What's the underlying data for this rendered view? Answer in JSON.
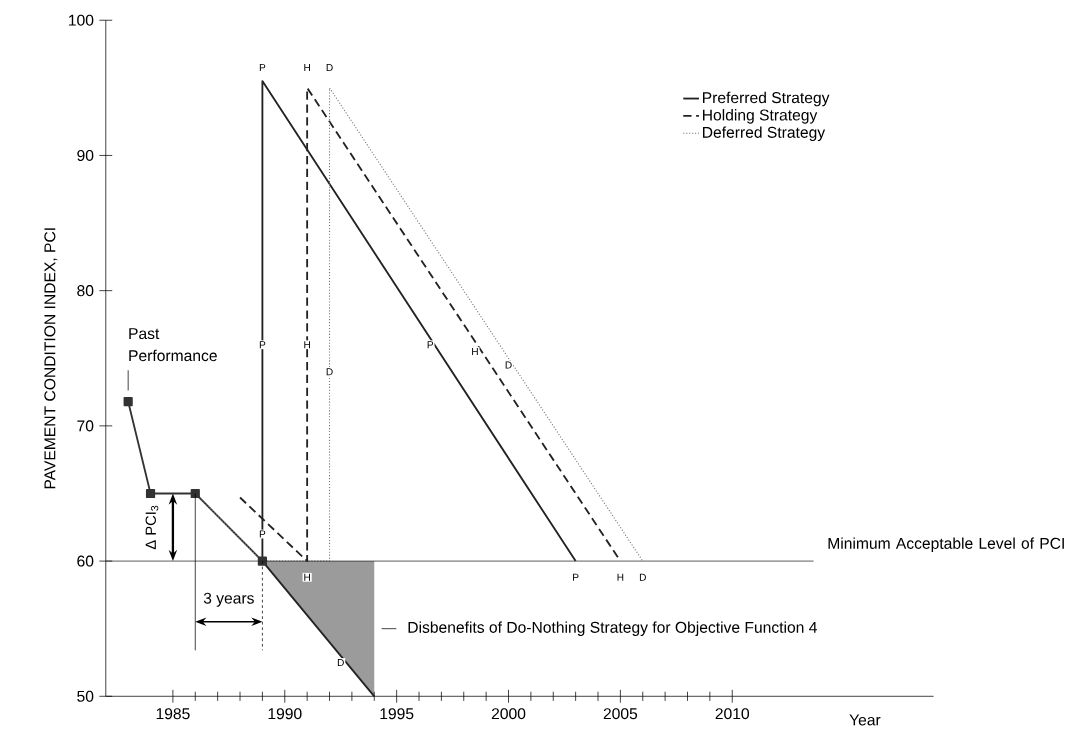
{
  "chart_data": {
    "type": "line",
    "xlabel": "Year",
    "ylabel": "PAVEMENT CONDITION INDEX, PCI",
    "xlim": [
      1982,
      2019
    ],
    "ylim": [
      50,
      100
    ],
    "xticks": [
      1985,
      1990,
      1995,
      2000,
      2005,
      2010
    ],
    "yticks": [
      50,
      60,
      70,
      80,
      90,
      100
    ],
    "legend": "top right",
    "grid": false,
    "series": [
      {
        "x": [
          1983,
          1984,
          1986,
          1989
        ],
        "values": [
          71.8,
          65,
          65,
          60
        ],
        "color": "#333333",
        "marker": "square",
        "line_style": "solid"
      },
      {
        "x": [
          1989,
          1994
        ],
        "values": [
          60,
          50
        ],
        "lower": [
          60,
          50
        ],
        "upper": [
          60,
          60
        ],
        "color": "#222222",
        "line_style": "solid"
      },
      {
        "name": "Preferred Strategy",
        "x": [
          1989,
          1989,
          2003
        ],
        "values": [
          60,
          95.5,
          60
        ],
        "color": "#222222",
        "line_style": "solid"
      },
      {
        "name": "Holding Strategy",
        "x": [
          1988,
          1991,
          1991,
          2005
        ],
        "values": [
          64.7,
          60,
          95,
          60
        ],
        "color": "#222222",
        "line_style": "dashed"
      },
      {
        "name": "Deferred Strategy",
        "x": [
          1986,
          1989,
          1992,
          1992,
          2006
        ],
        "values": [
          65,
          60,
          60,
          95,
          60
        ],
        "color": "#777777",
        "line_style": "dotted"
      }
    ],
    "ref_lines": [
      {
        "axis": "y",
        "value": 60,
        "label": "Minimum Acceptable Level of PCI",
        "color": "#222222"
      }
    ],
    "annotations": [
      {
        "text": "Past Performance",
        "x": 1983,
        "y": 71.8
      },
      "Δ PCI$_{3}$",
      "3 years",
      {
        "text": "Disbenefits of Do-Nothing Strategy for Objective Function 4",
        "x": 1994,
        "y": 55
      },
      {
        "text": "P",
        "x": 1989,
        "y": 96.5
      },
      {
        "text": "H",
        "x": 1991,
        "y": 96.5
      },
      {
        "text": "D",
        "x": 1992,
        "y": 96.5
      },
      {
        "text": "P",
        "x": 1989,
        "y": 76
      },
      {
        "text": "H",
        "x": 1991,
        "y": 76
      },
      {
        "text": "D",
        "x": 1992,
        "y": 74
      },
      {
        "text": "P",
        "x": 1996.5,
        "y": 76
      },
      {
        "text": "H",
        "x": 1998.5,
        "y": 75.5
      },
      {
        "text": "D",
        "x": 2000,
        "y": 74.5
      },
      {
        "text": "P",
        "x": 1989,
        "y": 62
      },
      {
        "text": "H",
        "x": 1991,
        "y": 58.8
      },
      {
        "text": "D",
        "x": 1992.5,
        "y": 52.5
      },
      {
        "text": "P",
        "x": 2003,
        "y": 58.8
      },
      {
        "text": "H",
        "x": 2005,
        "y": 58.8
      },
      {
        "text": "D",
        "x": 2006,
        "y": 58.8
      }
    ]
  }
}
